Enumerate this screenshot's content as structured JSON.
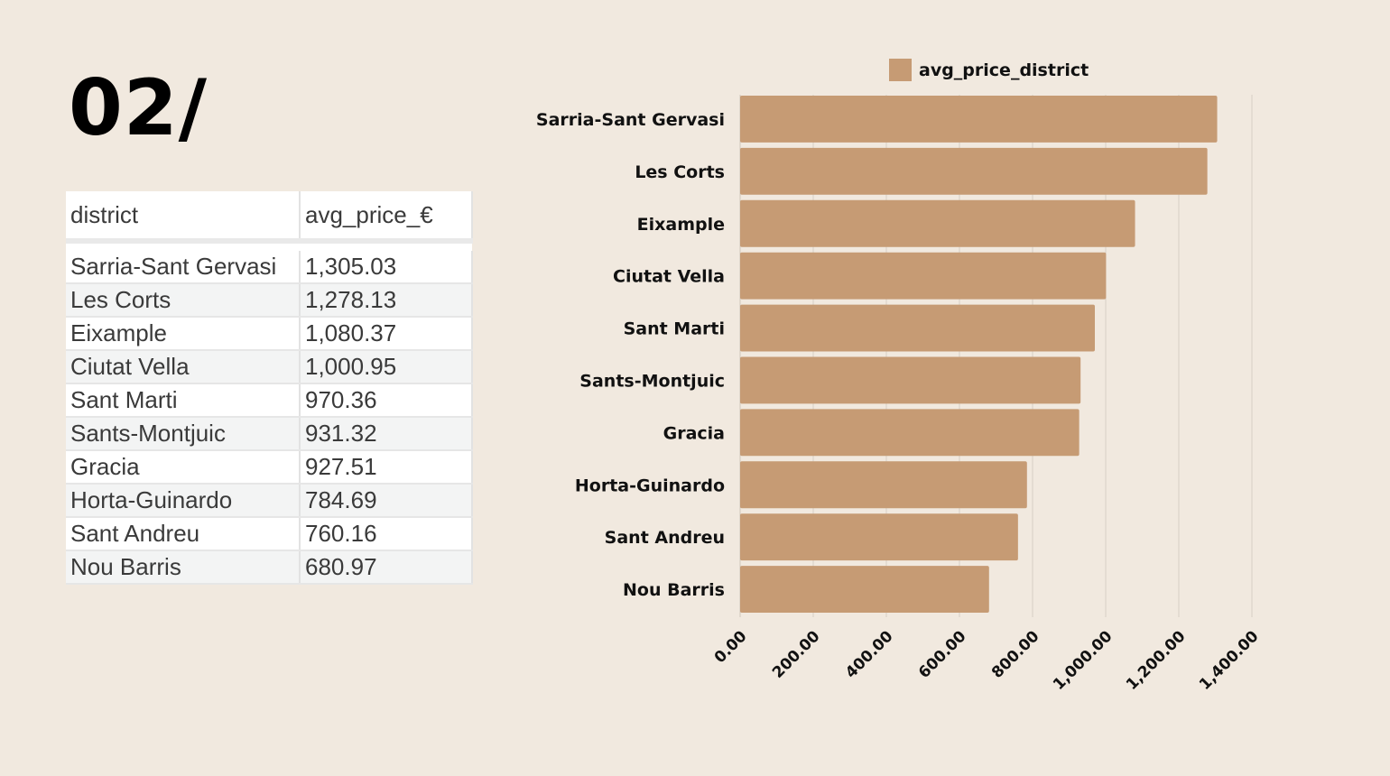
{
  "slide_number": "02/",
  "table": {
    "headers": [
      "district",
      "avg_price_€"
    ],
    "rows": [
      [
        "Sarria-Sant Gervasi",
        "1,305.03"
      ],
      [
        "Les Corts",
        "1,278.13"
      ],
      [
        "Eixample",
        "1,080.37"
      ],
      [
        "Ciutat Vella",
        "1,000.95"
      ],
      [
        "Sant Marti",
        "970.36"
      ],
      [
        "Sants-Montjuic",
        "931.32"
      ],
      [
        "Gracia",
        "927.51"
      ],
      [
        "Horta-Guinardo",
        "784.69"
      ],
      [
        "Sant Andreu",
        "760.16"
      ],
      [
        "Nou Barris",
        "680.97"
      ]
    ]
  },
  "chart_data": {
    "type": "bar",
    "orientation": "horizontal",
    "legend": {
      "label": "avg_price_district",
      "position": "top"
    },
    "categories": [
      "Sarria-Sant Gervasi",
      "Les Corts",
      "Eixample",
      "Ciutat Vella",
      "Sant Marti",
      "Sants-Montjuic",
      "Gracia",
      "Horta-Guinardo",
      "Sant Andreu",
      "Nou Barris"
    ],
    "values": [
      1305.03,
      1278.13,
      1080.37,
      1000.95,
      970.36,
      931.32,
      927.51,
      784.69,
      760.16,
      680.97
    ],
    "xlim": [
      0,
      1400
    ],
    "xticks": [
      0,
      200,
      400,
      600,
      800,
      1000,
      1200,
      1400
    ],
    "xtick_labels": [
      "0.00",
      "200.00",
      "400.00",
      "600.00",
      "800.00",
      "1,000.00",
      "1,200.00",
      "1,400.00"
    ],
    "grid": true,
    "colors": {
      "bar": "#c69b74",
      "grid": "#d6cec4",
      "axis": "#cfc6bb"
    }
  }
}
